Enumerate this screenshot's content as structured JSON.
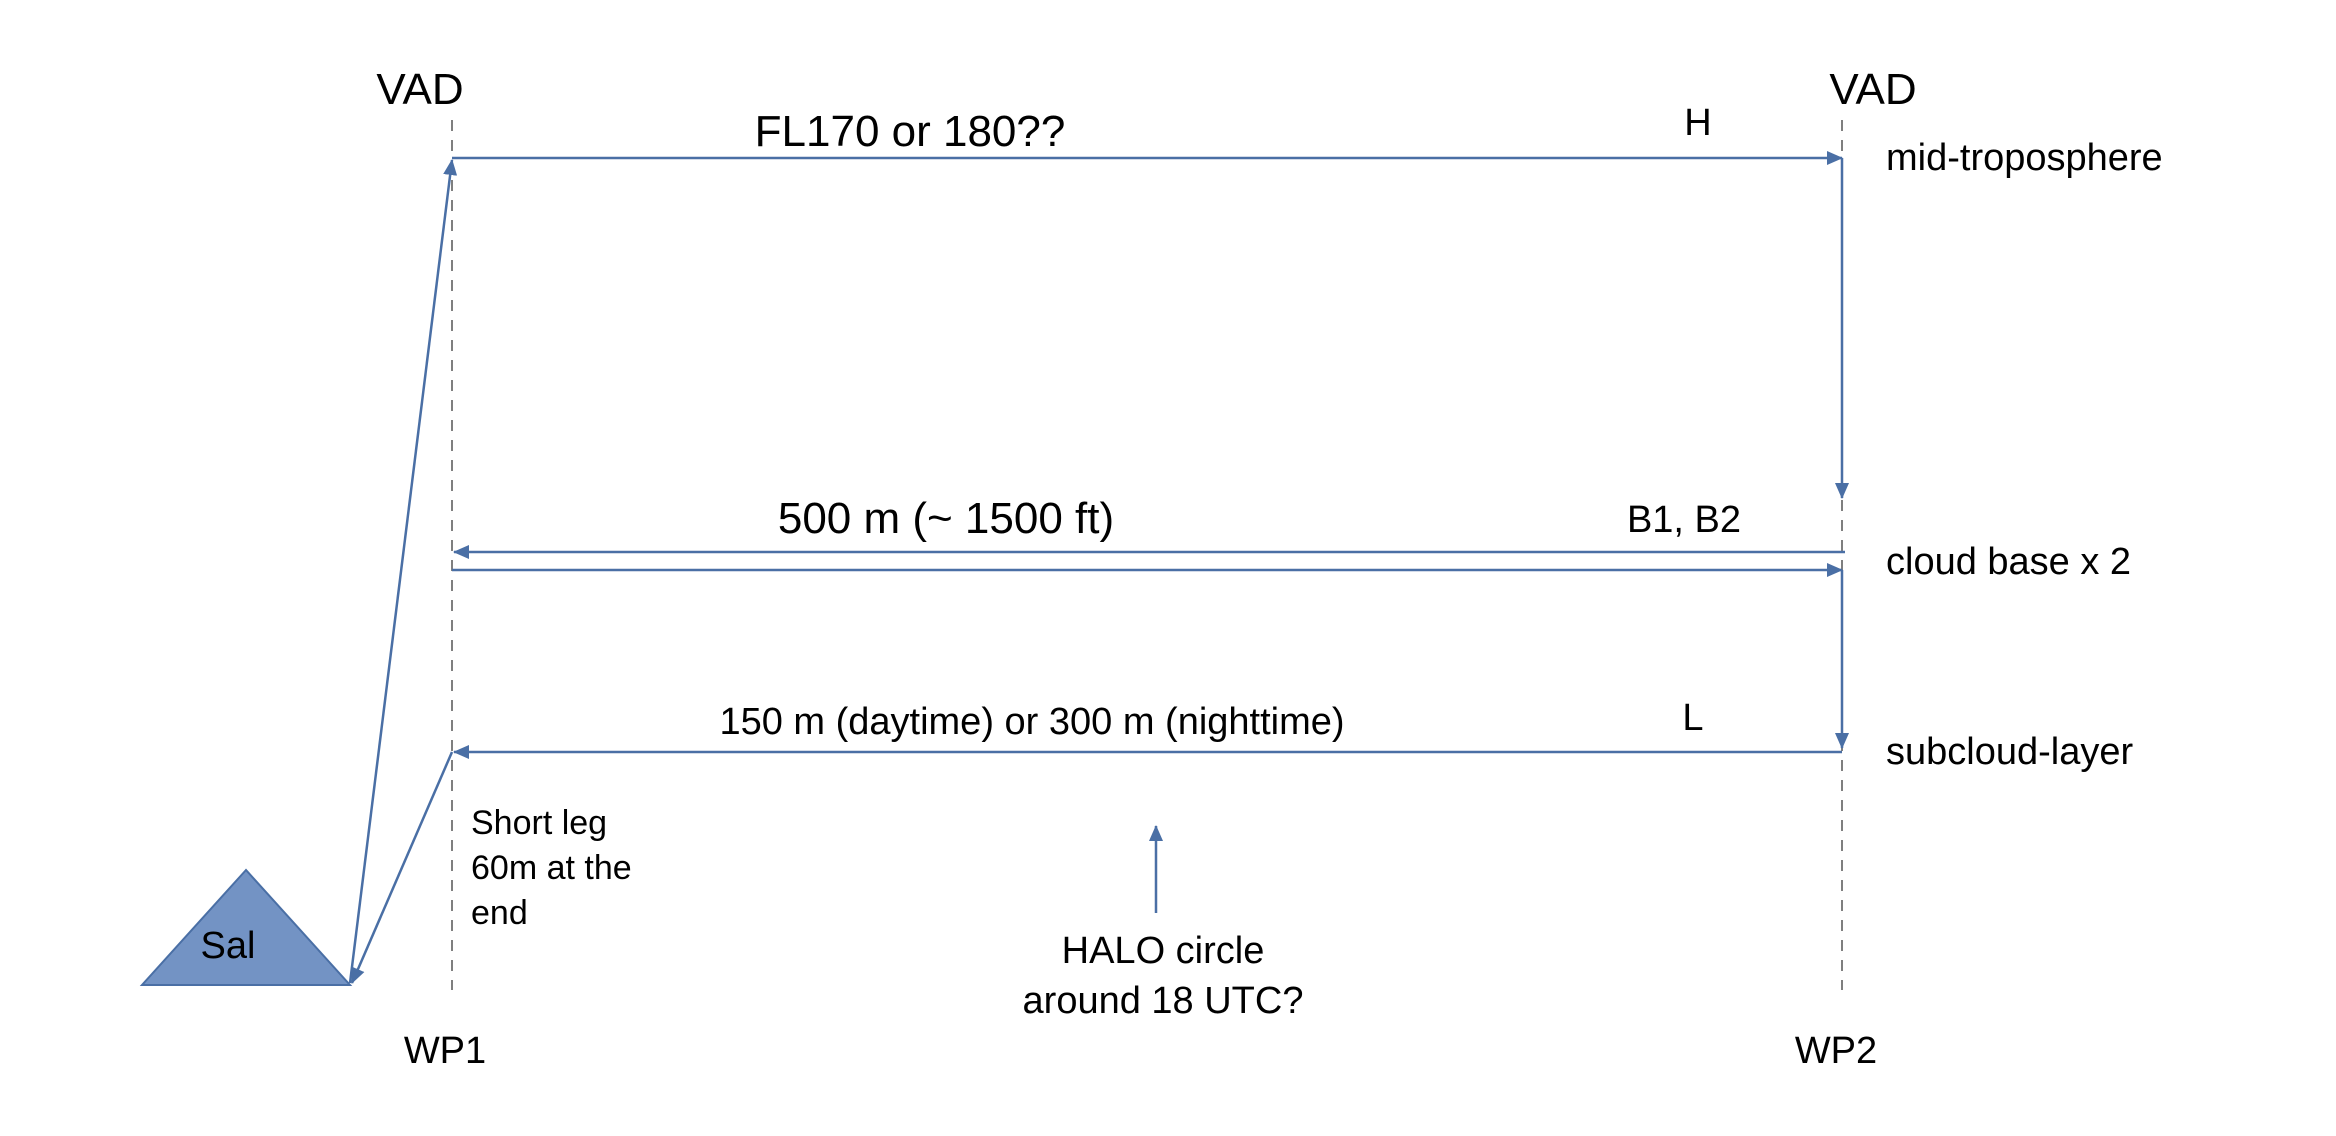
{
  "labels": {
    "vad_left": "VAD",
    "vad_right": "VAD",
    "wp1": "WP1",
    "wp2": "WP2",
    "sal": "Sal"
  },
  "legs": {
    "upper": {
      "altitude": "FL170 or 180??",
      "tag": "H",
      "layer": "mid-troposphere"
    },
    "middle": {
      "altitude": "500 m (~ 1500 ft)",
      "tag": "B1, B2",
      "layer": "cloud base x 2"
    },
    "lower": {
      "altitude": "150 m (daytime) or 300 m (nighttime)",
      "tag": "L",
      "layer": "subcloud-layer"
    }
  },
  "notes": {
    "short_leg": [
      "Short leg",
      "60m at the",
      "end"
    ],
    "halo": [
      "HALO circle",
      "around 18 UTC?"
    ]
  },
  "colors": {
    "flight_path": "#4a6fa5",
    "sal_fill": "#7393c4",
    "sal_stroke": "#4a6fa5",
    "waypoint_line": "#7f7f7f"
  }
}
